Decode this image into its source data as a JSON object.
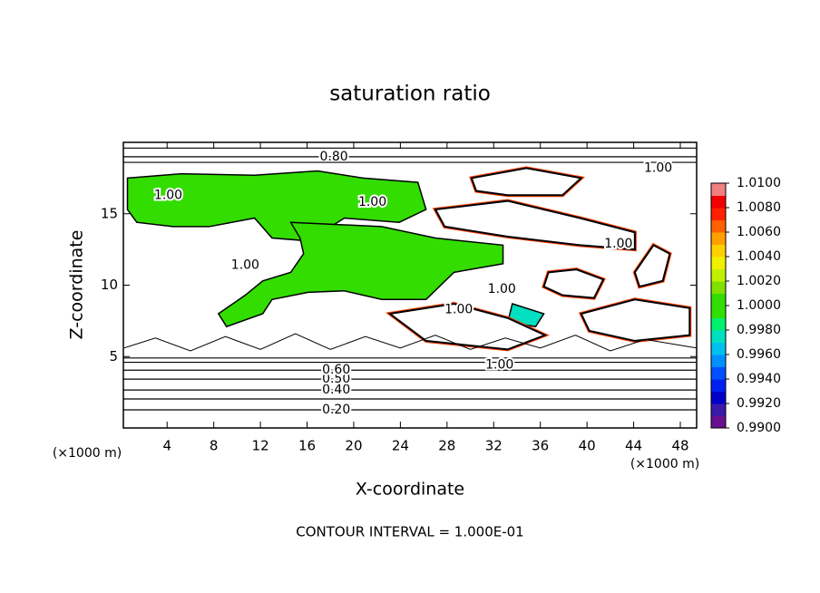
{
  "chart_data": {
    "type": "contour",
    "title": "saturation ratio",
    "x_label": "X-coordinate",
    "y_label": "Z-coordinate",
    "x_unit": "(×1000 m)",
    "y_unit": "(×1000 m)",
    "footnote": "CONTOUR INTERVAL = 1.000E-01",
    "xlim": [
      0.25,
      49.4
    ],
    "ylim": [
      0,
      20
    ],
    "xticks": [
      4,
      8,
      12,
      16,
      20,
      24,
      28,
      32,
      36,
      40,
      44,
      48
    ],
    "yticks": [
      5,
      10,
      15
    ],
    "colorbar": {
      "lim": [
        0.99,
        1.01
      ],
      "ticks": [
        {
          "value": 0.99,
          "label": "0.9900"
        },
        {
          "value": 0.992,
          "label": "0.9920"
        },
        {
          "value": 0.994,
          "label": "0.9940"
        },
        {
          "value": 0.996,
          "label": "0.9960"
        },
        {
          "value": 0.998,
          "label": "0.9980"
        },
        {
          "value": 1.0,
          "label": "1.0000"
        },
        {
          "value": 1.002,
          "label": "1.0020"
        },
        {
          "value": 1.004,
          "label": "1.0040"
        },
        {
          "value": 1.006,
          "label": "1.0060"
        },
        {
          "value": 1.008,
          "label": "1.0080"
        },
        {
          "value": 1.01,
          "label": "1.0100"
        }
      ],
      "colors": [
        "#6a0f8e",
        "#3a1aa8",
        "#0000c8",
        "#0020f0",
        "#0050ff",
        "#0090ff",
        "#00c0f0",
        "#00e0c0",
        "#00f070",
        "#30e000",
        "#33dd00",
        "#80e000",
        "#c0f000",
        "#f0f000",
        "#ffd000",
        "#ffa000",
        "#ff6000",
        "#ff2000",
        "#f00000",
        "#f08080"
      ]
    },
    "regions": [
      {
        "value": 1.0005,
        "x": [
          0.6,
          5.24,
          11.5,
          16.9,
          20.8,
          25.5,
          26.2,
          23.9,
          19.2,
          16.1,
          13.0,
          11.5,
          7.6,
          4.5,
          1.4,
          0.6
        ],
        "z": [
          17.5,
          17.8,
          17.7,
          18.0,
          17.5,
          17.2,
          15.3,
          14.4,
          14.7,
          13.1,
          13.3,
          14.7,
          14.1,
          14.1,
          14.4,
          15.3
        ]
      },
      {
        "value": 1.0005,
        "x": [
          14.6,
          22.4,
          27.0,
          32.8,
          32.8,
          28.6,
          26.2,
          22.4,
          19.2,
          16.1,
          13.0,
          12.2,
          9.1,
          8.4,
          10.7,
          12.2,
          14.6,
          15.7,
          15.4
        ],
        "z": [
          14.4,
          14.1,
          13.3,
          12.8,
          11.5,
          10.9,
          9.0,
          9.0,
          9.6,
          9.5,
          9.0,
          8.0,
          7.1,
          8.0,
          9.3,
          10.3,
          10.9,
          12.2,
          13.3
        ]
      },
      {
        "value": 0.9975,
        "x": [
          33.6,
          36.3,
          35.6,
          33.2
        ],
        "z": [
          8.7,
          8.0,
          7.1,
          7.4
        ]
      }
    ],
    "closed_contours": [
      {
        "level": 1,
        "x": [
          36.7,
          39.1,
          41.4,
          40.6,
          37.9,
          36.3
        ],
        "z": [
          10.9,
          11.1,
          10.4,
          9.1,
          9.3,
          9.9
        ]
      },
      {
        "level": 1,
        "x": [
          44.1,
          45.7,
          47.1,
          46.5,
          44.5
        ],
        "z": [
          10.9,
          12.8,
          12.2,
          10.3,
          9.9
        ]
      },
      {
        "level": 1,
        "x": [
          27.0,
          33.2,
          39.4,
          44.1,
          44.1,
          39.4,
          33.2,
          27.8
        ],
        "z": [
          15.3,
          15.9,
          14.7,
          13.7,
          12.5,
          12.8,
          13.4,
          14.1
        ]
      },
      {
        "level": 1,
        "x": [
          30.1,
          34.8,
          39.5,
          37.9,
          33.2,
          30.5
        ],
        "z": [
          17.5,
          18.2,
          17.5,
          16.3,
          16.3,
          16.6
        ]
      },
      {
        "level": 1,
        "x": [
          23.1,
          28.6,
          33.2,
          36.4,
          33.2,
          26.2
        ],
        "z": [
          8.0,
          8.7,
          7.7,
          6.5,
          5.5,
          6.1
        ]
      },
      {
        "level": 1,
        "x": [
          39.5,
          44.1,
          48.8,
          48.8,
          44.1,
          40.2
        ],
        "z": [
          8.0,
          9.0,
          8.4,
          6.5,
          6.1,
          6.8
        ]
      }
    ],
    "wavy_contours": [
      {
        "level": 0.9,
        "x": [
          0.3,
          3,
          6,
          9,
          12,
          15,
          18,
          21,
          24,
          27,
          30,
          33,
          36,
          39,
          42,
          45,
          49.4
        ],
        "z": [
          5.6,
          6.3,
          5.4,
          6.4,
          5.5,
          6.6,
          5.5,
          6.4,
          5.6,
          6.5,
          5.5,
          6.3,
          5.6,
          6.5,
          5.4,
          6.2,
          5.6
        ]
      }
    ],
    "level_contours": [
      {
        "level": 0.2,
        "z": 1.27,
        "label": "0.20",
        "label_x": 18.5
      },
      {
        "level": 0.3,
        "z": 2.03
      },
      {
        "level": 0.4,
        "z": 2.66,
        "label": "0.40",
        "label_x": 18.5
      },
      {
        "level": 0.5,
        "z": 3.42,
        "label": "0.50",
        "label_x": 18.5
      },
      {
        "level": 0.6,
        "z": 4.05,
        "label": "0.60",
        "label_x": 18.5
      },
      {
        "level": 0.7,
        "z": 4.6
      },
      {
        "level": 0.8,
        "z": 4.9
      },
      {
        "level": 0.8,
        "z": 18.99,
        "label": "0.80",
        "label_x": 18.3
      },
      {
        "level": 0.7,
        "z": 18.6
      },
      {
        "level": 0.6,
        "z": 19.6
      }
    ],
    "contour_labels": [
      {
        "level": 1,
        "label": "1.00",
        "x": 4.1,
        "z": 16.3
      },
      {
        "level": 1,
        "label": "1.00",
        "x": 21.6,
        "z": 15.8
      },
      {
        "level": 1,
        "label": "1.00",
        "x": 10.7,
        "z": 11.4
      },
      {
        "level": 1,
        "label": "1.00",
        "x": 32.7,
        "z": 9.7
      },
      {
        "level": 1,
        "label": "1.00",
        "x": 29.0,
        "z": 8.3
      },
      {
        "level": 1,
        "label": "1.00",
        "x": 42.7,
        "z": 12.9
      },
      {
        "level": 1,
        "label": "1.00",
        "x": 46.1,
        "z": 18.2
      },
      {
        "level": 1,
        "label": "1.00",
        "x": 32.5,
        "z": 4.4
      }
    ]
  }
}
